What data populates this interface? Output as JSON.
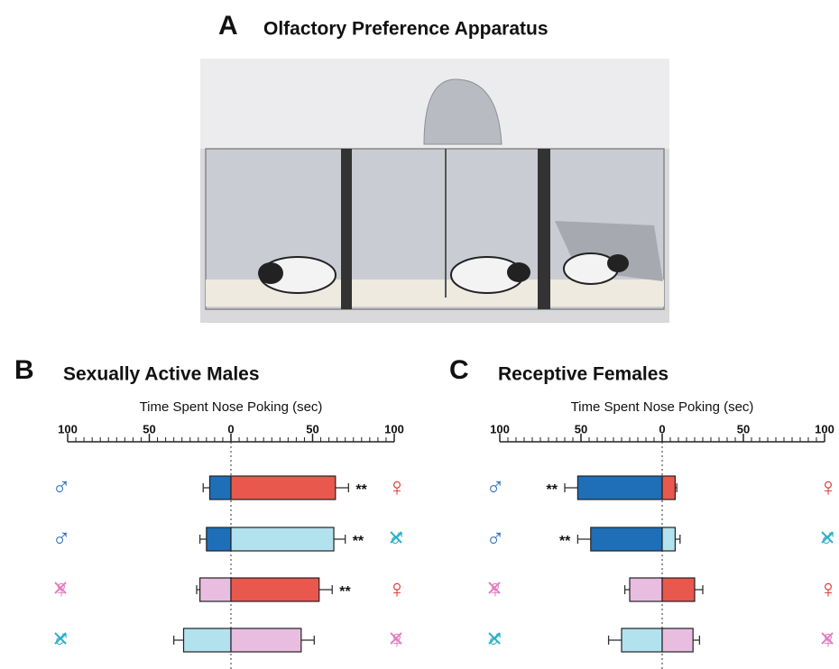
{
  "panel_a": {
    "label": "A",
    "title": "Olfactory Preference Apparatus"
  },
  "chart_data": [
    {
      "type": "bar",
      "orientation": "horizontal",
      "panel_label": "B",
      "title": "Sexually Active Males",
      "xlabel": "Time Spent Nose Poking (sec)",
      "xlim": [
        -100,
        100
      ],
      "xticks": [
        {
          "value": -100,
          "label": "100"
        },
        {
          "value": -50,
          "label": "50"
        },
        0,
        50,
        100
      ],
      "minor_tick_interval": 5,
      "series": [
        {
          "side": "left",
          "values": [
            13,
            15,
            19,
            29
          ],
          "errors": [
            4,
            4,
            2,
            6
          ],
          "colors": [
            "#1e6fb8",
            "#1e6fb8",
            "#e8bde0",
            "#b3e2ef"
          ],
          "labels": [
            "♂",
            "♂",
            "♀",
            "♂"
          ],
          "label_colors": [
            "#2a6ebb",
            "#2a6ebb",
            "#e27fbf",
            "#2fb0c8"
          ],
          "crossed": [
            false,
            false,
            true,
            true
          ],
          "significance": [
            null,
            null,
            null,
            null
          ]
        },
        {
          "side": "right",
          "values": [
            64,
            63,
            54,
            43
          ],
          "errors": [
            8,
            7,
            8,
            8
          ],
          "colors": [
            "#e8584c",
            "#b3e2ef",
            "#e8584c",
            "#e8bde0"
          ],
          "labels": [
            "♀",
            "♂",
            "♀",
            "♀"
          ],
          "label_colors": [
            "#e0302a",
            "#2fb0c8",
            "#e0302a",
            "#e27fbf"
          ],
          "crossed": [
            false,
            true,
            false,
            true
          ],
          "significance": [
            "**",
            "**",
            "**",
            null
          ]
        }
      ]
    },
    {
      "type": "bar",
      "orientation": "horizontal",
      "panel_label": "C",
      "title": "Receptive Females",
      "xlabel": "Time Spent Nose Poking (sec)",
      "xlim": [
        -100,
        100
      ],
      "xticks": [
        {
          "value": -100,
          "label": "100"
        },
        {
          "value": -50,
          "label": "50"
        },
        0,
        50,
        100
      ],
      "minor_tick_interval": 5,
      "series": [
        {
          "side": "left",
          "values": [
            52,
            44,
            20,
            25
          ],
          "errors": [
            8,
            8,
            3,
            8
          ],
          "colors": [
            "#1e6fb8",
            "#1e6fb8",
            "#e8bde0",
            "#b3e2ef"
          ],
          "labels": [
            "♂",
            "♂",
            "♀",
            "♂"
          ],
          "label_colors": [
            "#2a6ebb",
            "#2a6ebb",
            "#e27fbf",
            "#2fb0c8"
          ],
          "crossed": [
            false,
            false,
            true,
            true
          ],
          "significance": [
            "**",
            "**",
            null,
            null
          ]
        },
        {
          "side": "right",
          "values": [
            8,
            8,
            20,
            19
          ],
          "errors": [
            1,
            3,
            5,
            4
          ],
          "colors": [
            "#e8584c",
            "#b3e2ef",
            "#e8584c",
            "#e8bde0"
          ],
          "labels": [
            "♀",
            "♂",
            "♀",
            "♀"
          ],
          "label_colors": [
            "#e0302a",
            "#2fb0c8",
            "#e0302a",
            "#e27fbf"
          ],
          "crossed": [
            false,
            true,
            false,
            true
          ],
          "significance": [
            null,
            null,
            null,
            null
          ]
        }
      ]
    }
  ]
}
